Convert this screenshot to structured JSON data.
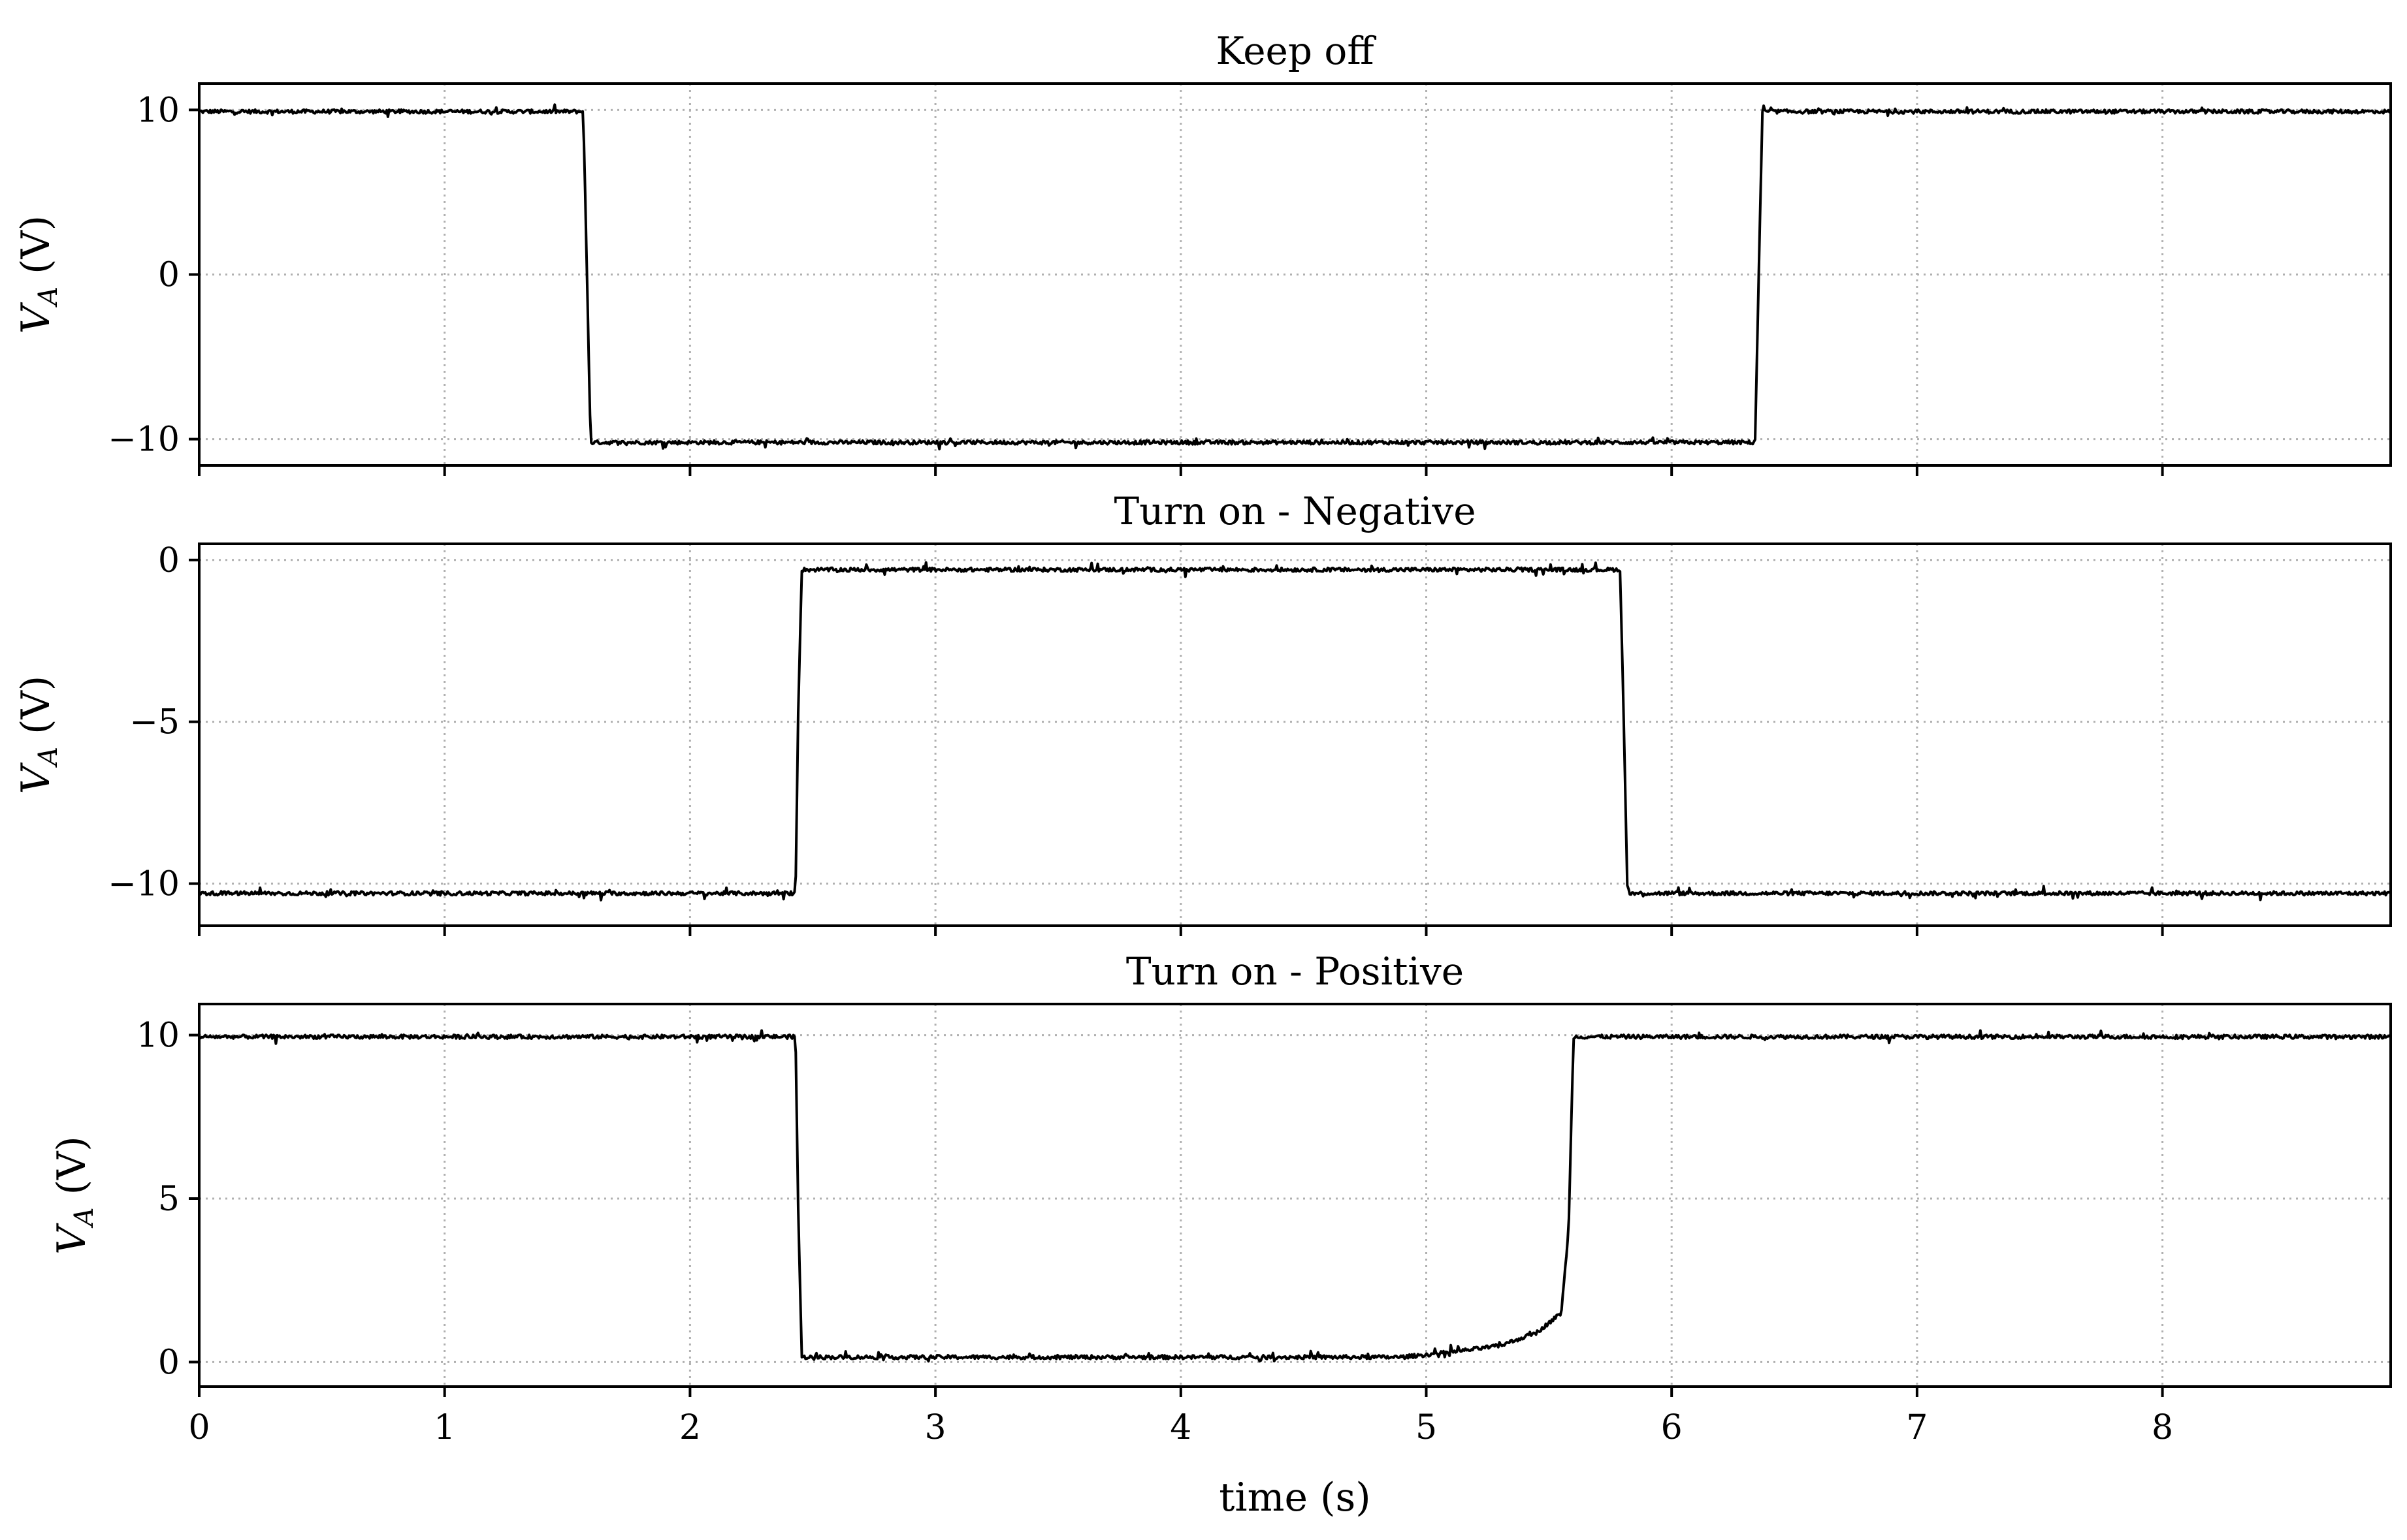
{
  "figure": {
    "xlabel": "time (s)",
    "xlim": [
      0,
      8.93
    ],
    "xticks": [
      0,
      1,
      2,
      3,
      4,
      5,
      6,
      7,
      8
    ]
  },
  "chart_data": [
    {
      "type": "line",
      "title": "Keep off",
      "xlabel": "",
      "ylabel": "V_A (V)",
      "ylim": [
        -11.6,
        11.6
      ],
      "yticks": [
        -10,
        0,
        10
      ],
      "ytick_labels": [
        "−10",
        "0",
        "10"
      ],
      "grid": true,
      "line_color": "#000000",
      "series": [
        {
          "x": [
            0,
            1.565,
            1.58,
            1.595,
            6.34,
            6.355,
            6.37,
            8.93
          ],
          "y": [
            9.9,
            9.9,
            0,
            -10.2,
            -10.2,
            0,
            9.9,
            9.9
          ]
        }
      ]
    },
    {
      "type": "line",
      "title": "Turn on - Negative",
      "xlabel": "",
      "ylabel": "V_A (V)",
      "ylim": [
        -11.3,
        0.5
      ],
      "yticks": [
        -10,
        -5,
        0
      ],
      "ytick_labels": [
        "−10",
        "−5",
        "0"
      ],
      "grid": true,
      "line_color": "#000000",
      "series": [
        {
          "x": [
            0,
            2.43,
            2.44,
            2.455,
            5.79,
            5.805,
            5.82,
            8.93
          ],
          "y": [
            -10.3,
            -10.3,
            -5,
            -0.3,
            -0.3,
            -5,
            -10.3,
            -10.3
          ]
        }
      ]
    },
    {
      "type": "line",
      "title": "Turn on - Positive",
      "xlabel": "time (s)",
      "ylabel": "V_A (V)",
      "ylim": [
        -0.75,
        10.95
      ],
      "yticks": [
        0,
        5,
        10
      ],
      "ytick_labels": [
        "0",
        "5",
        "10"
      ],
      "grid": true,
      "line_color": "#000000",
      "series": [
        {
          "x": [
            0,
            2.43,
            2.44,
            2.455,
            4.9,
            5.1,
            5.3,
            5.45,
            5.55,
            5.58,
            5.6,
            5.62,
            8.93
          ],
          "y": [
            9.95,
            9.95,
            5,
            0.15,
            0.15,
            0.3,
            0.5,
            0.9,
            1.5,
            4,
            9.95,
            9.95,
            9.95
          ]
        }
      ]
    }
  ]
}
